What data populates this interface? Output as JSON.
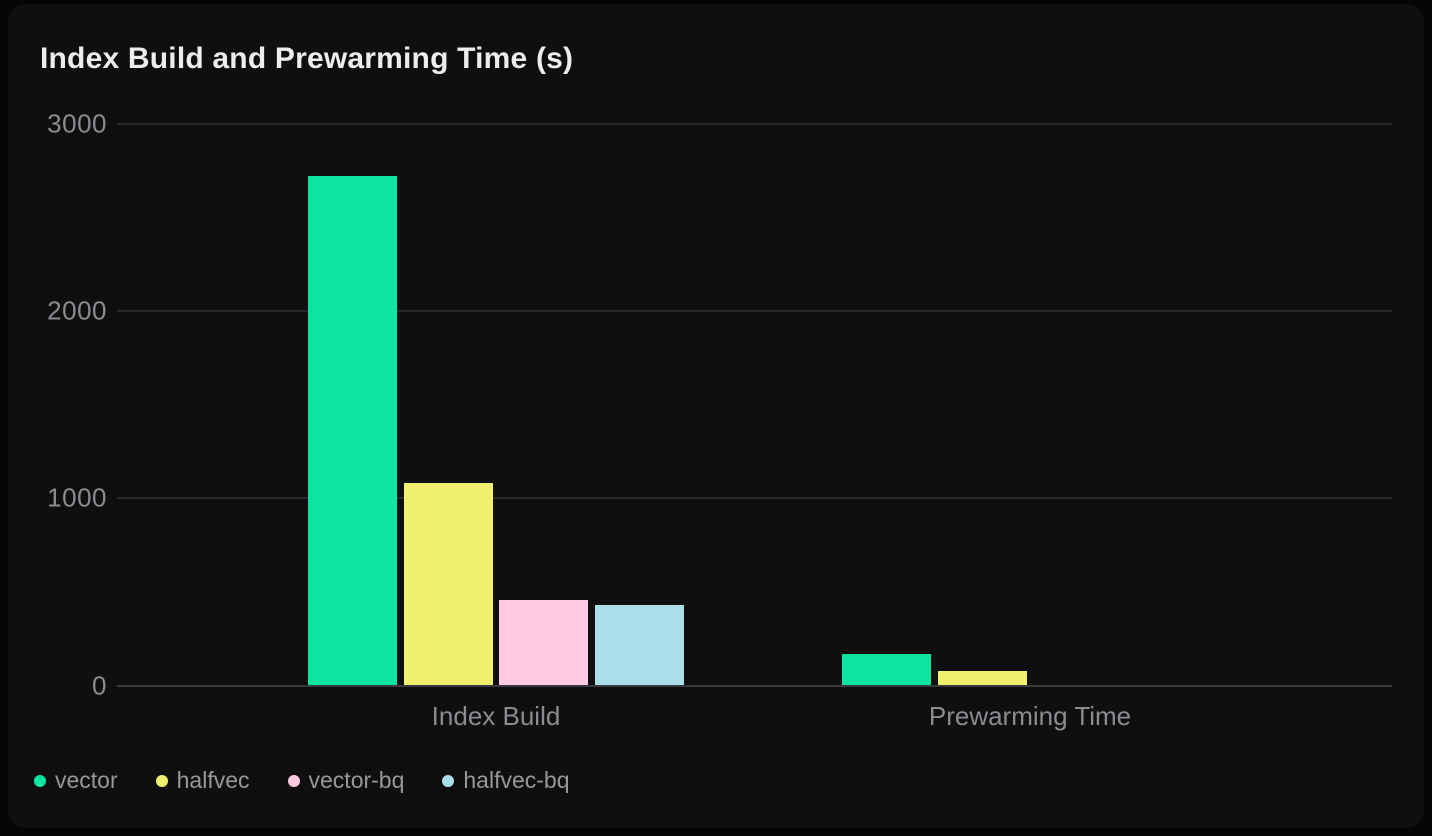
{
  "page": {
    "background_color": "#050505",
    "card_background_color": "#100f10",
    "gridline_color": "#29292d",
    "zero_line_color": "#3a3a3e",
    "axis_label_color": "#8b8b91",
    "legend_label_color": "#97979c",
    "title_color": "#ededef"
  },
  "chart_data": {
    "type": "bar",
    "title": "Index Build and Prewarming Time (s)",
    "categories": [
      "Index Build",
      "Prewarming Time"
    ],
    "series": [
      {
        "name": "vector",
        "color": "#0de49f",
        "values": [
          2720,
          170
        ]
      },
      {
        "name": "halfvec",
        "color": "#eef06e",
        "values": [
          1080,
          75
        ]
      },
      {
        "name": "vector-bq",
        "color": "#fecae2",
        "values": [
          455,
          0
        ]
      },
      {
        "name": "halfvec-bq",
        "color": "#aadfe9",
        "values": [
          430,
          0
        ]
      }
    ],
    "ylim": [
      0,
      3000
    ],
    "yticks": [
      0,
      1000,
      2000,
      3000
    ],
    "xlabel": "",
    "ylabel": "",
    "grid": "horizontal",
    "legend_position": "bottom-left"
  }
}
